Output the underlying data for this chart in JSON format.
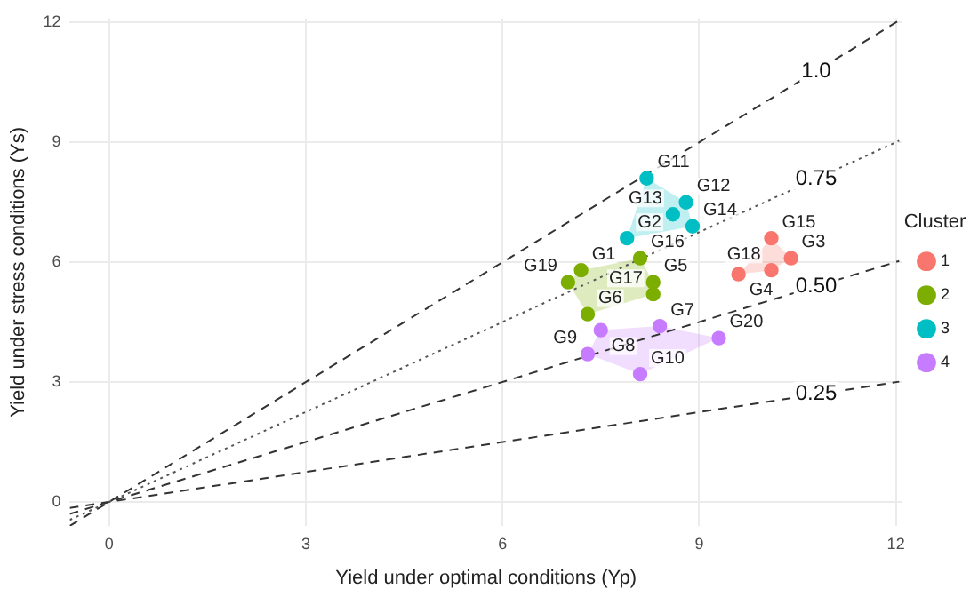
{
  "chart_data": {
    "type": "scatter",
    "xlabel": "Yield under optimal conditions (Yp)",
    "ylabel": "Yield under stress conditions (Ys)",
    "legend_title": "Cluster",
    "legend": "right",
    "grid": true,
    "marker": "circle",
    "xlim": [
      -0.6,
      12.1
    ],
    "ylim": [
      -0.6,
      12.1
    ],
    "xticks": [
      0,
      3,
      6,
      9,
      12
    ],
    "yticks": [
      0,
      3,
      6,
      9,
      12
    ],
    "series": [
      {
        "name": "1",
        "color": "#f8766d",
        "x": [
          10.1,
          10.4,
          10.1,
          9.6
        ],
        "values": [
          6.6,
          6.1,
          5.8,
          5.7
        ]
      },
      {
        "name": "2",
        "color": "#7cae00",
        "x": [
          7.2,
          7.0,
          7.3,
          8.1,
          8.3,
          8.3
        ],
        "values": [
          5.8,
          5.5,
          4.7,
          6.1,
          5.5,
          5.2
        ]
      },
      {
        "name": "3",
        "color": "#00bfc4",
        "x": [
          8.2,
          8.8,
          8.6,
          8.9,
          7.9
        ],
        "values": [
          8.1,
          7.5,
          7.2,
          6.9,
          6.6
        ]
      },
      {
        "name": "4",
        "color": "#c77cff",
        "x": [
          7.5,
          8.4,
          9.3,
          7.3,
          8.1
        ],
        "values": [
          4.3,
          4.4,
          4.1,
          3.7,
          3.2
        ]
      },
      {
        "name": "1.0",
        "type": "line",
        "marker": "none",
        "color": "#333333",
        "line_style": "dashed",
        "x": [
          -0.6,
          12.05
        ],
        "values": [
          -0.6,
          12.05
        ]
      },
      {
        "name": "0.75",
        "type": "line",
        "marker": "none",
        "color": "#555555",
        "line_style": "dotted",
        "x": [
          -0.6,
          12.05
        ],
        "values": [
          -0.45,
          9.04
        ]
      },
      {
        "name": "0.50",
        "type": "line",
        "marker": "none",
        "color": "#333333",
        "line_style": "dashed",
        "x": [
          -0.6,
          12.05
        ],
        "values": [
          -0.3,
          6.03
        ]
      },
      {
        "name": "0.25",
        "type": "line",
        "marker": "none",
        "color": "#333333",
        "line_style": "dashed",
        "x": [
          -0.6,
          12.05
        ],
        "values": [
          -0.15,
          3.01
        ]
      }
    ],
    "annotations": [
      {
        "text": "G15",
        "x": 10.1,
        "y": 6.6
      },
      {
        "text": "G3",
        "x": 10.4,
        "y": 6.1
      },
      {
        "text": "G18",
        "x": 10.1,
        "y": 5.8
      },
      {
        "text": "G4",
        "x": 9.6,
        "y": 5.7
      },
      {
        "text": "G1",
        "x": 7.2,
        "y": 5.8
      },
      {
        "text": "G19",
        "x": 7.0,
        "y": 5.5
      },
      {
        "text": "G6",
        "x": 7.3,
        "y": 4.7
      },
      {
        "text": "G16",
        "x": 8.1,
        "y": 6.1
      },
      {
        "text": "G5",
        "x": 8.3,
        "y": 5.5
      },
      {
        "text": "G17",
        "x": 8.3,
        "y": 5.2
      },
      {
        "text": "G11",
        "x": 8.2,
        "y": 8.1
      },
      {
        "text": "G12",
        "x": 8.8,
        "y": 7.5
      },
      {
        "text": "G13",
        "x": 8.6,
        "y": 7.2
      },
      {
        "text": "G14",
        "x": 8.9,
        "y": 6.9
      },
      {
        "text": "G2",
        "x": 7.9,
        "y": 6.6
      },
      {
        "text": "G8",
        "x": 7.5,
        "y": 4.3
      },
      {
        "text": "G7",
        "x": 8.4,
        "y": 4.4
      },
      {
        "text": "G20",
        "x": 9.3,
        "y": 4.1
      },
      {
        "text": "G9",
        "x": 7.3,
        "y": 3.7
      },
      {
        "text": "G10",
        "x": 8.1,
        "y": 3.2
      }
    ]
  }
}
